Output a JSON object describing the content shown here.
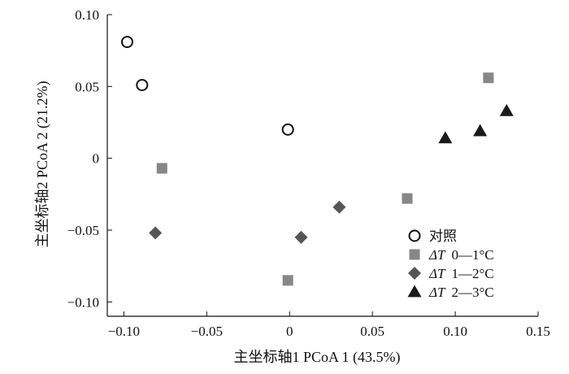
{
  "chart_data": {
    "type": "scatter",
    "xlabel": "主坐标轴1 PCoA 1 (43.5%)",
    "ylabel": "主坐标轴2 PCoA 2 (21.2%)",
    "xlim": [
      -0.11,
      0.15
    ],
    "ylim": [
      -0.11,
      0.1
    ],
    "x_ticks": [
      -0.1,
      -0.05,
      0,
      0.05,
      0.1,
      0.15
    ],
    "x_tick_labels": [
      "−0.10",
      "−0.05",
      "0",
      "0.05",
      "0.10",
      "0.15"
    ],
    "y_ticks": [
      -0.1,
      -0.05,
      0,
      0.05,
      0.1
    ],
    "y_tick_labels": [
      "−0.10",
      "−0.05",
      "0",
      "0.05",
      "0.10"
    ],
    "grid": false,
    "legend_position": "bottom-right",
    "series": [
      {
        "name": "对照",
        "marker": "open-circle",
        "color": "#111111",
        "points": [
          [
            -0.098,
            0.081
          ],
          [
            -0.089,
            0.051
          ],
          [
            -0.001,
            0.02
          ]
        ]
      },
      {
        "name": "ΔT 0—1°C",
        "name_parts": [
          "ΔT",
          "0—1°C"
        ],
        "marker": "square",
        "color": "#878787",
        "points": [
          [
            -0.077,
            -0.007
          ],
          [
            -0.001,
            -0.085
          ],
          [
            0.071,
            -0.028
          ],
          [
            0.12,
            0.056
          ]
        ]
      },
      {
        "name": "ΔT 1—2°C",
        "name_parts": [
          "ΔT",
          "1—2°C"
        ],
        "marker": "diamond",
        "color": "#555555",
        "points": [
          [
            -0.081,
            -0.052
          ],
          [
            0.007,
            -0.055
          ],
          [
            0.03,
            -0.034
          ]
        ]
      },
      {
        "name": "ΔT 2—3°C",
        "name_parts": [
          "ΔT",
          "2—3°C"
        ],
        "marker": "triangle",
        "color": "#1a1a1a",
        "points": [
          [
            0.094,
            0.014
          ],
          [
            0.115,
            0.019
          ],
          [
            0.131,
            0.033
          ]
        ]
      }
    ]
  }
}
